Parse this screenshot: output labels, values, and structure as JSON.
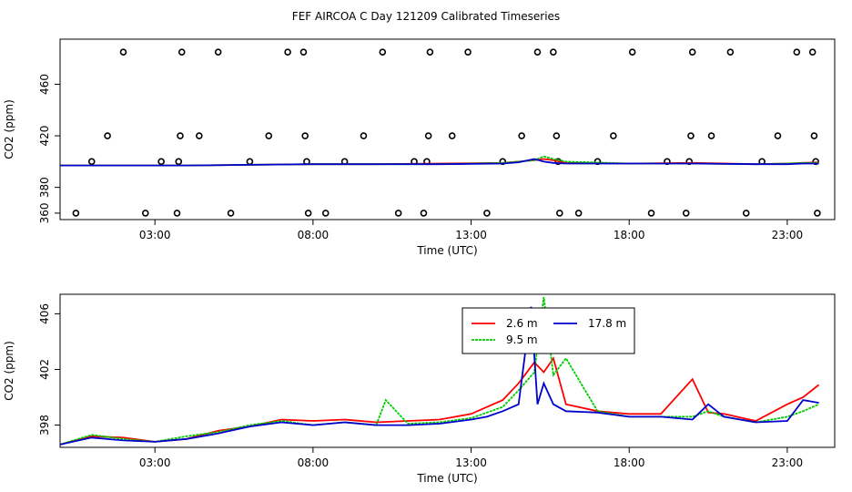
{
  "title": "FEF AIRCOA C  Day 121209  Calibrated Timeseries",
  "chart_data": [
    {
      "type": "scatter",
      "xlabel": "Time (UTC)",
      "ylabel": "CO2 (ppm)",
      "xlim": [
        0,
        24.5
      ],
      "ylim": [
        355,
        495
      ],
      "xticks": [
        3,
        8,
        13,
        18,
        23
      ],
      "xtick_labels": [
        "03:00",
        "08:00",
        "13:00",
        "18:00",
        "23:00"
      ],
      "yticks": [
        360,
        380,
        420,
        460
      ],
      "ytick_labels": [
        "360",
        "380",
        "420",
        "460"
      ],
      "grid": false,
      "markers": [
        [
          0.5,
          360
        ],
        [
          1.0,
          400
        ],
        [
          1.5,
          420
        ],
        [
          2.0,
          485
        ],
        [
          2.7,
          360
        ],
        [
          3.2,
          400
        ],
        [
          3.7,
          360
        ],
        [
          3.75,
          400
        ],
        [
          3.8,
          420
        ],
        [
          3.85,
          485
        ],
        [
          4.4,
          420
        ],
        [
          5.0,
          485
        ],
        [
          5.4,
          360
        ],
        [
          6.0,
          400
        ],
        [
          6.6,
          420
        ],
        [
          7.2,
          485
        ],
        [
          7.7,
          485
        ],
        [
          7.75,
          420
        ],
        [
          7.8,
          400
        ],
        [
          7.85,
          360
        ],
        [
          8.4,
          360
        ],
        [
          9.0,
          400
        ],
        [
          9.6,
          420
        ],
        [
          10.2,
          485
        ],
        [
          10.7,
          360
        ],
        [
          11.2,
          400
        ],
        [
          11.5,
          360
        ],
        [
          11.6,
          400
        ],
        [
          11.65,
          420
        ],
        [
          11.7,
          485
        ],
        [
          12.4,
          420
        ],
        [
          12.9,
          485
        ],
        [
          13.5,
          360
        ],
        [
          14.0,
          400
        ],
        [
          14.6,
          420
        ],
        [
          15.1,
          485
        ],
        [
          15.6,
          485
        ],
        [
          15.7,
          420
        ],
        [
          15.75,
          400
        ],
        [
          15.8,
          360
        ],
        [
          16.4,
          360
        ],
        [
          17.0,
          400
        ],
        [
          17.5,
          420
        ],
        [
          18.1,
          485
        ],
        [
          18.7,
          360
        ],
        [
          19.2,
          400
        ],
        [
          19.8,
          360
        ],
        [
          19.9,
          400
        ],
        [
          19.95,
          420
        ],
        [
          20.0,
          485
        ],
        [
          20.6,
          420
        ],
        [
          21.2,
          485
        ],
        [
          21.7,
          360
        ],
        [
          22.2,
          400
        ],
        [
          22.7,
          420
        ],
        [
          23.3,
          485
        ],
        [
          23.8,
          485
        ],
        [
          23.85,
          420
        ],
        [
          23.9,
          400
        ],
        [
          23.95,
          360
        ]
      ],
      "series": [
        {
          "name": "2.6 m",
          "color": "#ff0000",
          "x": [
            0,
            2,
            4,
            6,
            8,
            10,
            12,
            14,
            14.5,
            15,
            15.3,
            15.6,
            16,
            18,
            20,
            22,
            23,
            23.5,
            24
          ],
          "y": [
            397,
            397,
            397,
            397.5,
            398,
            398,
            398.5,
            399,
            400,
            401,
            402,
            401,
            399,
            398.5,
            399,
            398,
            398.5,
            399,
            399.5
          ]
        },
        {
          "name": "9.5 m",
          "color": "#00cc00",
          "x": [
            0,
            2,
            4,
            6,
            8,
            10,
            12,
            14,
            14.5,
            15,
            15.3,
            15.6,
            16,
            18,
            20,
            22,
            23,
            23.5,
            24
          ],
          "y": [
            397,
            397,
            397,
            397.5,
            398,
            398,
            398,
            399,
            400,
            401,
            404,
            402,
            400,
            398.5,
            398.5,
            398,
            398.5,
            399,
            399
          ]
        },
        {
          "name": "17.8 m",
          "color": "#0000cc",
          "x": [
            0,
            2,
            4,
            6,
            8,
            10,
            12,
            14,
            14.5,
            15,
            15.3,
            15.6,
            16,
            18,
            20,
            22,
            23,
            23.5,
            24
          ],
          "y": [
            397,
            397,
            397,
            397.5,
            398,
            398,
            398,
            398.5,
            399.5,
            402,
            400,
            399,
            398.5,
            398.5,
            398.5,
            398,
            398,
            398.5,
            398.5
          ]
        }
      ]
    },
    {
      "type": "line",
      "xlabel": "Time (UTC)",
      "ylabel": "CO2 (ppm)",
      "xlim": [
        0,
        24.5
      ],
      "ylim": [
        396.4,
        407.4
      ],
      "xticks": [
        3,
        8,
        13,
        18,
        23
      ],
      "xtick_labels": [
        "03:00",
        "08:00",
        "13:00",
        "18:00",
        "23:00"
      ],
      "yticks": [
        398,
        402,
        406
      ],
      "ytick_labels": [
        "398",
        "402",
        "406"
      ],
      "grid": false,
      "legend": "top-center",
      "series": [
        {
          "name": "2.6 m",
          "color": "#ff0000",
          "x": [
            0,
            1,
            2,
            3,
            4,
            5,
            6,
            7,
            8,
            9,
            10,
            11,
            12,
            13,
            13.5,
            14,
            14.5,
            15,
            15.3,
            15.6,
            16,
            17,
            18,
            19,
            20,
            20.5,
            21,
            22,
            23,
            23.5,
            24
          ],
          "y": [
            396.6,
            397.2,
            397.1,
            396.8,
            397.0,
            397.6,
            397.9,
            398.4,
            398.3,
            398.4,
            398.2,
            398.3,
            398.4,
            398.8,
            399.3,
            399.8,
            401.0,
            402.5,
            401.8,
            402.8,
            399.5,
            399.0,
            398.8,
            398.8,
            401.3,
            398.9,
            398.8,
            398.3,
            399.5,
            400.0,
            400.9
          ]
        },
        {
          "name": "9.5 m",
          "color": "#00cc00",
          "x": [
            0,
            1,
            2,
            3,
            4,
            5,
            6,
            7,
            8,
            9,
            10,
            10.3,
            11,
            12,
            13,
            13.5,
            14,
            14.5,
            15,
            15.3,
            15.6,
            16,
            17,
            18,
            19,
            20,
            20.5,
            21,
            22,
            23,
            23.5,
            24
          ],
          "y": [
            396.6,
            397.3,
            397.0,
            396.8,
            397.2,
            397.5,
            398.0,
            398.3,
            398.0,
            398.2,
            398.0,
            399.8,
            398.1,
            398.2,
            398.5,
            398.9,
            399.3,
            400.5,
            401.8,
            407.2,
            401.6,
            402.8,
            399.0,
            398.6,
            398.6,
            398.6,
            399.0,
            398.6,
            398.2,
            398.6,
            399.0,
            399.5
          ]
        },
        {
          "name": "17.8 m",
          "color": "#0000cc",
          "x": [
            0,
            1,
            2,
            3,
            4,
            5,
            6,
            7,
            8,
            9,
            10,
            11,
            12,
            13,
            13.5,
            14,
            14.5,
            14.9,
            15.1,
            15.3,
            15.6,
            16,
            17,
            18,
            19,
            20,
            20.5,
            21,
            22,
            23,
            23.5,
            24
          ],
          "y": [
            396.6,
            397.1,
            396.9,
            396.8,
            397.0,
            397.4,
            397.9,
            398.2,
            398.0,
            398.2,
            398.0,
            398.0,
            398.1,
            398.4,
            398.6,
            399.0,
            399.5,
            406.5,
            399.5,
            401.0,
            399.5,
            399.0,
            398.9,
            398.6,
            398.6,
            398.4,
            399.5,
            398.6,
            398.2,
            398.3,
            399.8,
            399.6
          ]
        }
      ]
    }
  ]
}
